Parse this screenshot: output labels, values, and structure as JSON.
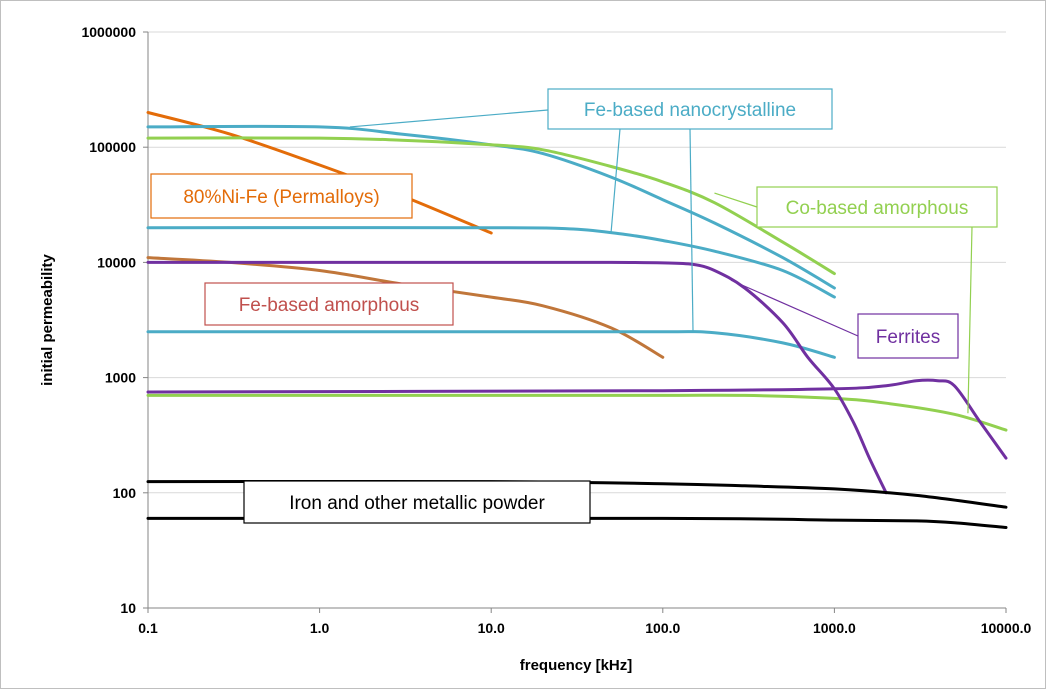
{
  "chart_data": {
    "type": "line",
    "title": "",
    "xlabel": "frequency [kHz]",
    "ylabel": "initial permeability",
    "x_scale": "log",
    "y_scale": "log",
    "xlim": [
      0.1,
      10000
    ],
    "ylim": [
      10,
      1000000
    ],
    "grid": "horizontal",
    "legend": "none",
    "x_ticks": [
      "0.1",
      "1.0",
      "10.0",
      "100.0",
      "1000.0",
      "10000.0"
    ],
    "y_ticks": [
      "10",
      "100",
      "1000",
      "10000",
      "100000",
      "1000000"
    ],
    "colors": {
      "nanocrystalline": "#4bacc6",
      "co_amorphous": "#92d050",
      "permalloy": "#e36c09",
      "fe_amorphous": "#c0763a",
      "ferrites": "#7030a0",
      "powder": "#000000",
      "fe_amorphous_box": "#c0504d"
    },
    "series": [
      {
        "group": "permalloy",
        "points": [
          [
            0.1,
            200000
          ],
          [
            0.3,
            130000
          ],
          [
            1,
            70000
          ],
          [
            3,
            38000
          ],
          [
            10,
            18000
          ]
        ]
      },
      {
        "group": "fe_amorphous",
        "points": [
          [
            0.1,
            11000
          ],
          [
            0.3,
            10000
          ],
          [
            1,
            8500
          ],
          [
            3,
            6500
          ],
          [
            10,
            5000
          ],
          [
            20,
            4200
          ],
          [
            50,
            2700
          ],
          [
            100,
            1500
          ]
        ]
      },
      {
        "group": "nanocrystalline",
        "points": [
          [
            0.1,
            150000
          ],
          [
            1,
            150000
          ],
          [
            3,
            130000
          ],
          [
            10,
            105000
          ],
          [
            20,
            88000
          ],
          [
            50,
            55000
          ],
          [
            100,
            35000
          ],
          [
            200,
            22000
          ],
          [
            500,
            11000
          ],
          [
            1000,
            6000
          ]
        ]
      },
      {
        "group": "nanocrystalline",
        "points": [
          [
            0.1,
            20000
          ],
          [
            10,
            20000
          ],
          [
            30,
            19500
          ],
          [
            60,
            17500
          ],
          [
            100,
            15500
          ],
          [
            200,
            12500
          ],
          [
            500,
            8500
          ],
          [
            1000,
            5000
          ]
        ]
      },
      {
        "group": "nanocrystalline",
        "points": [
          [
            0.1,
            2500
          ],
          [
            10,
            2500
          ],
          [
            100,
            2500
          ],
          [
            200,
            2450
          ],
          [
            500,
            2000
          ],
          [
            1000,
            1500
          ]
        ]
      },
      {
        "group": "co_amorphous",
        "points": [
          [
            0.1,
            120000
          ],
          [
            1,
            120000
          ],
          [
            3,
            115000
          ],
          [
            10,
            105000
          ],
          [
            20,
            95000
          ],
          [
            50,
            68000
          ],
          [
            100,
            50000
          ],
          [
            200,
            33000
          ],
          [
            500,
            15000
          ],
          [
            1000,
            8000
          ]
        ]
      },
      {
        "group": "co_amorphous",
        "points": [
          [
            0.1,
            700
          ],
          [
            10,
            700
          ],
          [
            100,
            700
          ],
          [
            300,
            700
          ],
          [
            1000,
            660
          ],
          [
            2000,
            600
          ],
          [
            5000,
            480
          ],
          [
            10000,
            350
          ]
        ]
      },
      {
        "group": "ferrites",
        "points": [
          [
            0.1,
            10000
          ],
          [
            1,
            10000
          ],
          [
            10,
            10000
          ],
          [
            50,
            10000
          ],
          [
            100,
            9900
          ],
          [
            150,
            9600
          ],
          [
            200,
            8500
          ],
          [
            300,
            6000
          ],
          [
            500,
            3000
          ],
          [
            700,
            1500
          ],
          [
            1000,
            800
          ],
          [
            1300,
            400
          ],
          [
            1600,
            200
          ],
          [
            2000,
            100
          ]
        ]
      },
      {
        "group": "ferrites",
        "points": [
          [
            0.1,
            750
          ],
          [
            100,
            770
          ],
          [
            1000,
            800
          ],
          [
            2000,
            850
          ],
          [
            3000,
            940
          ],
          [
            4000,
            940
          ],
          [
            5000,
            850
          ],
          [
            7000,
            420
          ],
          [
            10000,
            200
          ]
        ]
      },
      {
        "group": "powder",
        "points": [
          [
            0.1,
            125
          ],
          [
            10,
            125
          ],
          [
            100,
            120
          ],
          [
            300,
            115
          ],
          [
            1000,
            108
          ],
          [
            3000,
            95
          ],
          [
            10000,
            75
          ]
        ]
      },
      {
        "group": "powder",
        "points": [
          [
            0.1,
            60
          ],
          [
            100,
            60
          ],
          [
            1000,
            58
          ],
          [
            3000,
            57
          ],
          [
            5000,
            55
          ],
          [
            10000,
            50
          ]
        ]
      }
    ],
    "annotations": [
      {
        "text": "Fe-based nanocrystalline",
        "group": "nanocrystalline",
        "pointers": [
          [
            1.5,
            150000
          ],
          [
            50,
            18500
          ],
          [
            150,
            2500
          ]
        ]
      },
      {
        "text": "Co-based amorphous",
        "group": "co_amorphous",
        "pointers": [
          [
            200,
            40000
          ],
          [
            6000,
            490
          ]
        ]
      },
      {
        "text": "80%Ni-Fe (Permalloys)",
        "group": "permalloy",
        "pointers": []
      },
      {
        "text": "Fe-based amorphous",
        "group": "fe_amorphous_box",
        "pointers": []
      },
      {
        "text": "Ferrites",
        "group": "ferrites",
        "pointers": [
          [
            250,
            7000
          ]
        ]
      },
      {
        "text": "Iron and other metallic powder",
        "group": "powder",
        "pointers": []
      }
    ]
  }
}
